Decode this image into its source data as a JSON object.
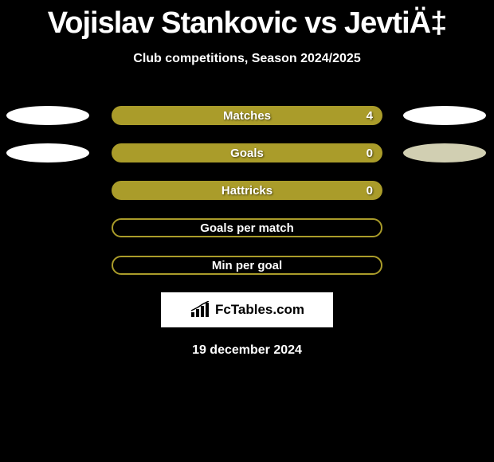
{
  "title": "Vojislav Stankovic vs JevtiÄ‡",
  "subtitle": "Club competitions, Season 2024/2025",
  "bars": [
    {
      "label": "Matches",
      "value": "4",
      "filled": true,
      "showLeftEllipse": true,
      "showRightEllipse": true,
      "leftEllipseClass": "solid",
      "rightEllipseClass": "solid"
    },
    {
      "label": "Goals",
      "value": "0",
      "filled": true,
      "showLeftEllipse": true,
      "showRightEllipse": true,
      "leftEllipseClass": "solid",
      "rightEllipseClass": "pale"
    },
    {
      "label": "Hattricks",
      "value": "0",
      "filled": true,
      "showLeftEllipse": false,
      "showRightEllipse": false
    },
    {
      "label": "Goals per match",
      "value": "",
      "filled": false,
      "showLeftEllipse": false,
      "showRightEllipse": false
    },
    {
      "label": "Min per goal",
      "value": "",
      "filled": false,
      "showLeftEllipse": false,
      "showRightEllipse": false
    }
  ],
  "logo_text": "FcTables.com",
  "date": "19 december 2024",
  "colors": {
    "background": "#000000",
    "bar_fill": "#aa9c2a",
    "text": "#ffffff",
    "logo_bg": "#ffffff"
  }
}
